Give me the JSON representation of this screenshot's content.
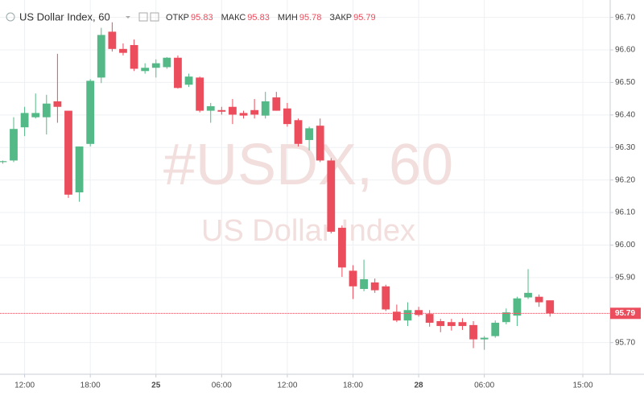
{
  "header": {
    "symbol": "US Dollar Index, 60",
    "ohlc": [
      {
        "label": "ОТКР",
        "value": 95.83
      },
      {
        "label": "МАКС",
        "value": 95.83
      },
      {
        "label": "МИН",
        "value": 95.78
      },
      {
        "label": "ЗАКР",
        "value": 95.79
      }
    ]
  },
  "chart_data": {
    "type": "candlestick",
    "watermark": "#USDX, 60",
    "watermark_subtitle": "US Dollar Index",
    "up_color": "#53b987",
    "down_color": "#eb4d5c",
    "grid": true,
    "x": [
      -1,
      0,
      1,
      2,
      3,
      4,
      5,
      6,
      7,
      8,
      9,
      10,
      11,
      12,
      13,
      14,
      15,
      16,
      17,
      18,
      19,
      20,
      21,
      22,
      23,
      24,
      25,
      26,
      27,
      28,
      29,
      30,
      31,
      32,
      33,
      34,
      35,
      36,
      37,
      38,
      39,
      40,
      41,
      42,
      43,
      44,
      45,
      46,
      47,
      48,
      49
    ],
    "open": [
      96.255,
      96.26,
      96.362,
      96.393,
      96.393,
      96.442,
      96.413,
      96.162,
      96.311,
      96.515,
      96.656,
      96.603,
      96.615,
      96.535,
      96.545,
      96.547,
      96.576,
      96.493,
      96.515,
      96.413,
      96.415,
      96.425,
      96.406,
      96.415,
      96.398,
      96.454,
      96.42,
      96.384,
      96.323,
      96.367,
      96.26,
      96.053,
      95.921,
      95.865,
      95.885,
      95.873,
      95.795,
      95.768,
      95.8,
      95.788,
      95.766,
      95.763,
      95.763,
      95.754,
      95.71,
      95.72,
      95.763,
      95.783,
      95.839,
      95.841,
      95.83
    ],
    "high": [
      96.26,
      96.393,
      96.425,
      96.466,
      96.462,
      96.588,
      96.413,
      96.303,
      96.51,
      96.668,
      96.685,
      96.62,
      96.632,
      96.559,
      96.571,
      96.578,
      96.583,
      96.527,
      96.518,
      96.437,
      96.425,
      96.449,
      96.413,
      96.449,
      96.471,
      96.471,
      96.437,
      96.389,
      96.364,
      96.389,
      96.267,
      96.06,
      95.938,
      95.955,
      95.897,
      95.878,
      95.817,
      95.824,
      95.81,
      95.8,
      95.773,
      95.773,
      95.775,
      95.766,
      95.72,
      95.768,
      95.805,
      95.841,
      95.926,
      95.848,
      95.83
    ],
    "low": [
      96.25,
      96.255,
      96.335,
      96.389,
      96.34,
      96.376,
      96.145,
      96.133,
      96.303,
      96.498,
      96.595,
      96.583,
      96.535,
      96.527,
      96.515,
      96.542,
      96.481,
      96.486,
      96.408,
      96.376,
      96.401,
      96.372,
      96.389,
      96.389,
      96.389,
      96.413,
      96.364,
      96.303,
      96.291,
      96.255,
      96.036,
      95.902,
      95.834,
      95.858,
      95.853,
      95.797,
      95.763,
      95.751,
      95.78,
      95.749,
      95.732,
      95.737,
      95.739,
      95.683,
      95.678,
      95.715,
      95.756,
      95.751,
      95.834,
      95.81,
      95.78
    ],
    "close": [
      96.258,
      96.357,
      96.406,
      96.406,
      96.435,
      96.425,
      96.155,
      96.303,
      96.505,
      96.646,
      96.603,
      96.591,
      96.542,
      96.545,
      96.559,
      96.576,
      96.483,
      96.518,
      96.413,
      96.427,
      96.41,
      96.401,
      96.398,
      96.401,
      96.442,
      96.413,
      96.372,
      96.311,
      96.359,
      96.26,
      96.041,
      95.931,
      95.873,
      95.895,
      95.861,
      95.802,
      95.768,
      95.8,
      95.785,
      95.761,
      95.751,
      95.751,
      95.751,
      95.71,
      95.715,
      95.761,
      95.793,
      95.836,
      95.853,
      95.824,
      95.79
    ],
    "last_price": 95.79,
    "last_price_color": "#eb4d5c",
    "xlim": [
      -1.25,
      54.5
    ],
    "xticks": [
      {
        "value": 1,
        "label": "12:00"
      },
      {
        "value": 7,
        "label": "18:00"
      },
      {
        "value": 13,
        "label": "25"
      },
      {
        "value": 19,
        "label": "06:00"
      },
      {
        "value": 25,
        "label": "12:00"
      },
      {
        "value": 31,
        "label": "18:00"
      },
      {
        "value": 37,
        "label": "28"
      },
      {
        "value": 43,
        "label": "06:00"
      },
      {
        "value": 52,
        "label": "15:00"
      }
    ],
    "ylim": [
      95.6027,
      96.7535
    ],
    "yticks": [
      {
        "value": 95.7,
        "label": "95.70"
      },
      {
        "value": 95.9,
        "label": "95.90"
      },
      {
        "value": 96,
        "label": "96.00"
      },
      {
        "value": 96.1,
        "label": "96.10"
      },
      {
        "value": 96.2,
        "label": "96.20"
      },
      {
        "value": 96.3,
        "label": "96.30"
      },
      {
        "value": 96.4,
        "label": "96.40"
      },
      {
        "value": 96.5,
        "label": "96.50"
      },
      {
        "value": 96.6,
        "label": "96.60"
      },
      {
        "value": 96.7,
        "label": "96.70"
      }
    ]
  }
}
